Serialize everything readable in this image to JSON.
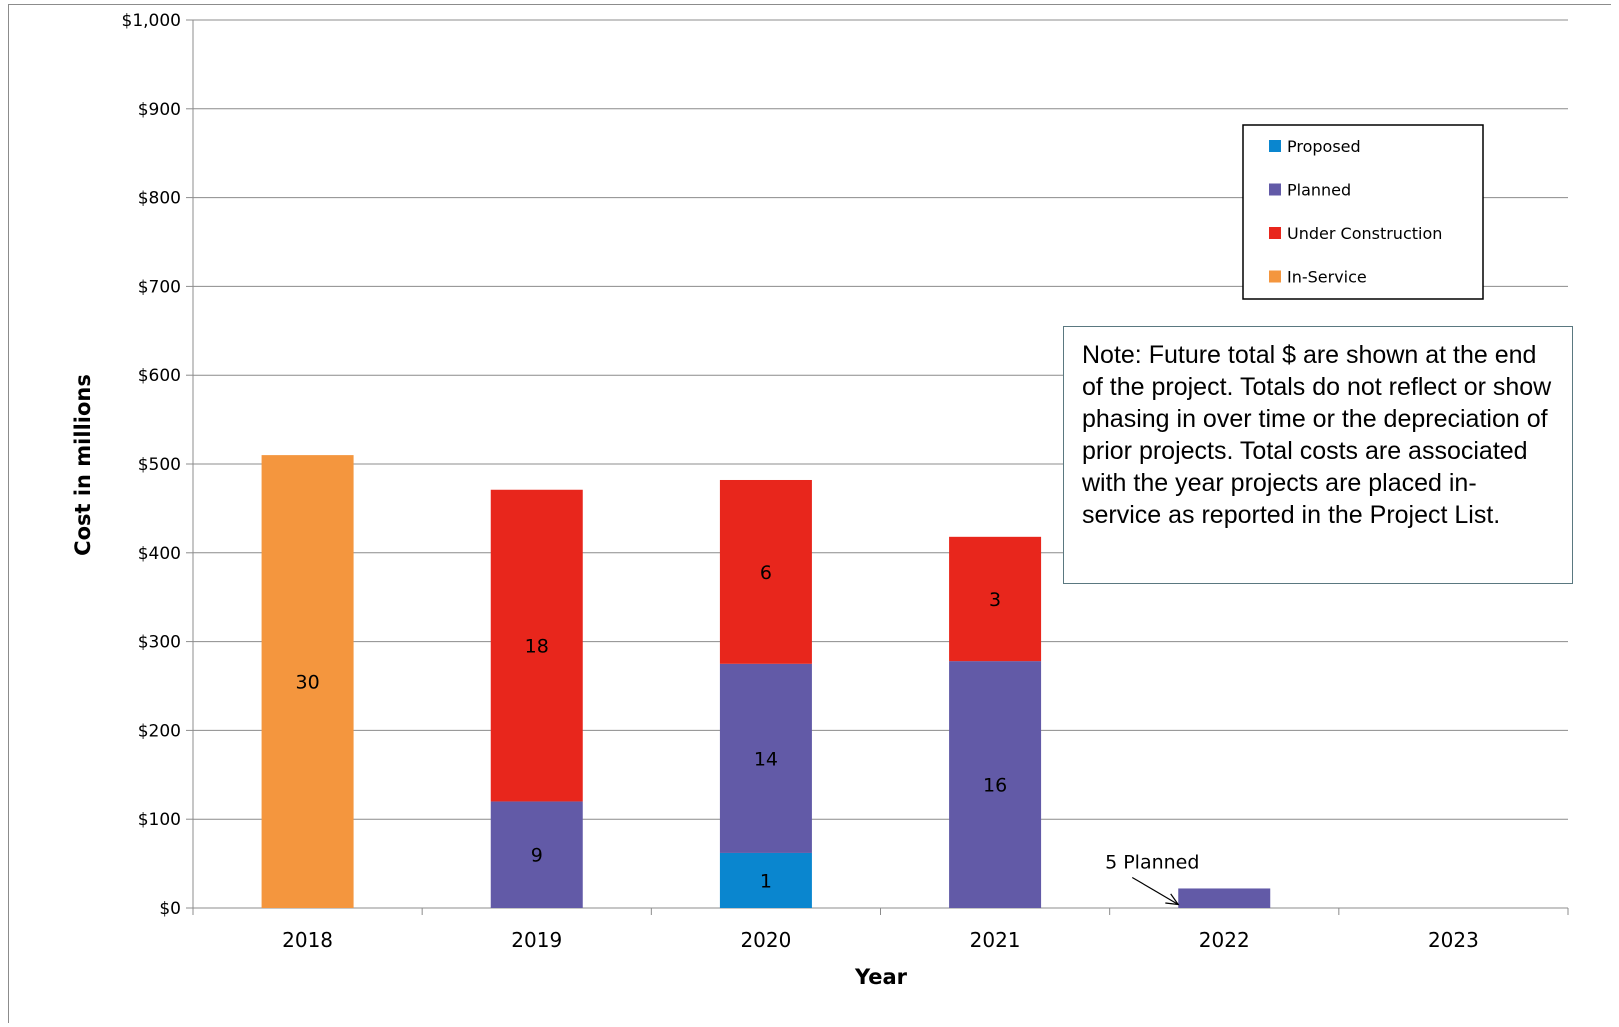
{
  "chart_data": {
    "type": "bar",
    "stacked": true,
    "categories": [
      "2018",
      "2019",
      "2020",
      "2021",
      "2022",
      "2023"
    ],
    "ylabel": "Cost in millions",
    "xlabel": "Year",
    "ylim": [
      0,
      1000
    ],
    "yticks": [
      0,
      100,
      200,
      300,
      400,
      500,
      600,
      700,
      800,
      900,
      1000
    ],
    "ytick_labels": [
      "$0",
      "$100",
      "$200",
      "$300",
      "$400",
      "$500",
      "$600",
      "$700",
      "$800",
      "$900",
      "$1,000"
    ],
    "grid": true,
    "legend_position": "top-right",
    "series": [
      {
        "name": "Proposed",
        "color": "#0a86cf",
        "values": [
          0,
          0,
          62,
          0,
          0,
          0
        ],
        "labels": [
          "",
          "",
          "1",
          "",
          "",
          ""
        ]
      },
      {
        "name": "Planned",
        "color": "#625aa7",
        "values": [
          0,
          120,
          213,
          278,
          22,
          0
        ],
        "labels": [
          "",
          "9",
          "14",
          "16",
          "",
          ""
        ]
      },
      {
        "name": "Under Construction",
        "color": "#e8261c",
        "values": [
          0,
          351,
          207,
          140,
          0,
          0
        ],
        "labels": [
          "",
          "18",
          "6",
          "3",
          "",
          ""
        ]
      },
      {
        "name": "In-Service",
        "color": "#f4963e",
        "values": [
          510,
          0,
          0,
          0,
          0,
          0
        ],
        "labels": [
          "30",
          "",
          "",
          "",
          "",
          ""
        ]
      }
    ],
    "annotations": [
      {
        "text": "5 Planned",
        "category": "2022"
      }
    ],
    "note": "Note: Future total $ are shown at the end of the project. Totals do not reflect or show phasing in over time or the depreciation of prior projects. Total costs are associated with the year projects are placed in-service as reported in the Project List."
  }
}
